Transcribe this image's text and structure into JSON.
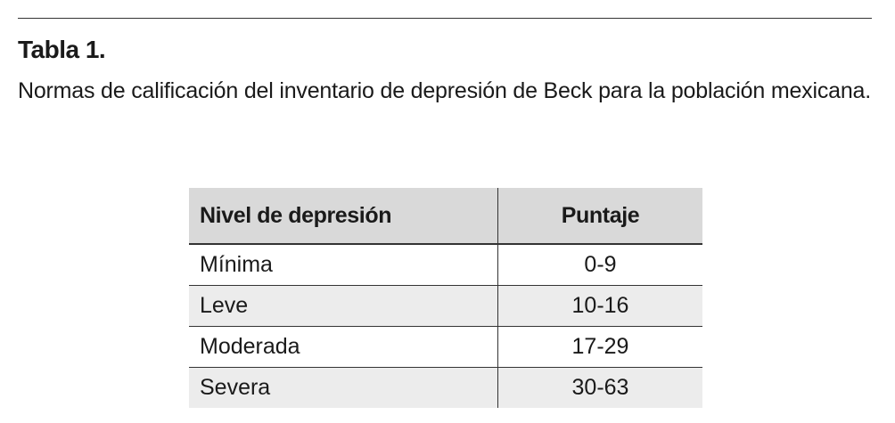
{
  "caption": {
    "title": "Tabla 1.",
    "text": "Normas de calificación del inventario de depresión de Beck para la población mexicana."
  },
  "table": {
    "headers": {
      "level": "Nivel de depresión",
      "score": "Puntaje"
    },
    "rows": [
      {
        "level": "Mínima",
        "score": "0-9"
      },
      {
        "level": "Leve",
        "score": "10-16"
      },
      {
        "level": "Moderada",
        "score": "17-29"
      },
      {
        "level": "Severa",
        "score": "30-63"
      }
    ]
  }
}
